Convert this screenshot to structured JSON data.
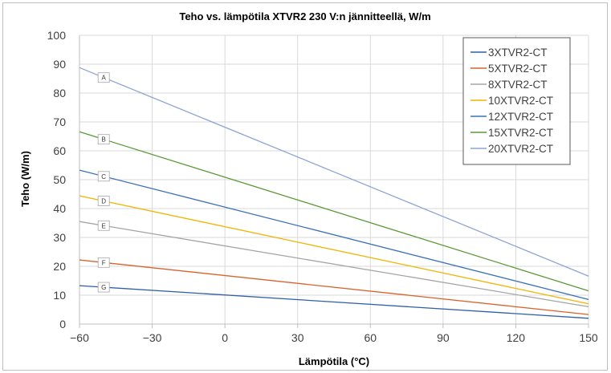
{
  "chart_data": {
    "type": "line",
    "title": "Teho vs. lämpötila XTVR2 230 V:n jännitteellä, W/m",
    "xlabel": "Lämpötila (°C)",
    "ylabel": "Teho (W/m)",
    "xlim": [
      -60,
      150
    ],
    "ylim": [
      0,
      100
    ],
    "x_ticks": [
      -60,
      -30,
      0,
      30,
      60,
      90,
      120,
      150
    ],
    "x_tick_labels": [
      "−60",
      "−30",
      "0",
      "30",
      "60",
      "90",
      "120",
      "150"
    ],
    "y_ticks": [
      0,
      10,
      20,
      30,
      40,
      50,
      60,
      70,
      80,
      90,
      100
    ],
    "grid": true,
    "legend_position": "top-right",
    "series": [
      {
        "name": "3XTVR2-CT",
        "color": "#2e5fa8",
        "marker": "G",
        "x": [
          -60,
          150
        ],
        "y": [
          13.3,
          2.0
        ]
      },
      {
        "name": "5XTVR2-CT",
        "color": "#d9622b",
        "marker": "F",
        "x": [
          -60,
          150
        ],
        "y": [
          22.2,
          3.3
        ]
      },
      {
        "name": "8XTVR2-CT",
        "color": "#a5a5a5",
        "marker": "E",
        "x": [
          -60,
          150
        ],
        "y": [
          35.5,
          6.0
        ]
      },
      {
        "name": "10XTVR2-CT",
        "color": "#f2b300",
        "marker": "D",
        "x": [
          -60,
          150
        ],
        "y": [
          44.4,
          7.0
        ]
      },
      {
        "name": "12XTVR2-CT",
        "color": "#3a70b8",
        "marker": "C",
        "x": [
          -60,
          150
        ],
        "y": [
          53.3,
          8.5
        ]
      },
      {
        "name": "15XTVR2-CT",
        "color": "#5b9a36",
        "marker": "B",
        "x": [
          -60,
          150
        ],
        "y": [
          66.6,
          11.5
        ]
      },
      {
        "name": "20XTVR2-CT",
        "color": "#8ea3d4",
        "marker": "A",
        "x": [
          -60,
          150
        ],
        "y": [
          88.8,
          16.6
        ]
      }
    ]
  }
}
